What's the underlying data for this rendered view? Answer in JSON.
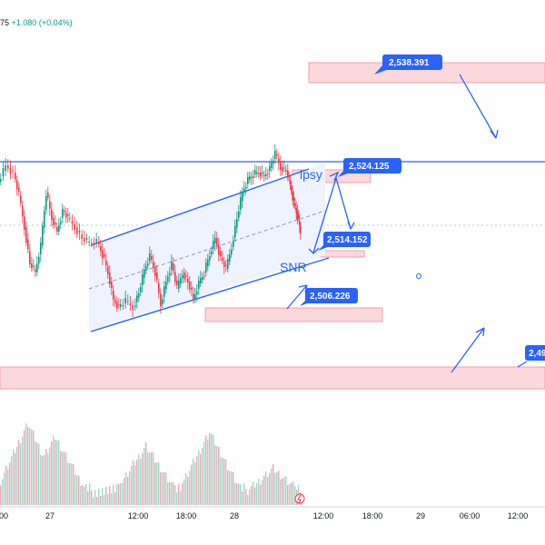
{
  "header": {
    "prefix": "75",
    "change": "+1.080 (+0.04%)"
  },
  "colors": {
    "up": "#089981",
    "down": "#f23645",
    "drawing": "#2962ff",
    "zone_fill": "#fbd8dc",
    "zone_border": "#f0a0a8",
    "channel_fill": "#eef3ff",
    "label_bg": "#2962ff",
    "axis_text": "#131722"
  },
  "time_axis": {
    "ticks": [
      "00",
      "27",
      "12:00",
      "18:00",
      "28",
      "12:00",
      "18:00",
      "29",
      "06:00",
      "12:00"
    ]
  },
  "price_labels": [
    {
      "name": "label-2538",
      "text": "2,538.391"
    },
    {
      "name": "label-2524",
      "text": "2,524.125"
    },
    {
      "name": "label-2514",
      "text": "2,514.152"
    },
    {
      "name": "label-2506",
      "text": "2,506.226"
    },
    {
      "name": "label-249x",
      "text": "2,49"
    }
  ],
  "annotations": {
    "lpsy": "lpsy",
    "snr": "SNR"
  },
  "icons": {
    "lightning": "lightning-icon",
    "circle": "circle-marker-icon"
  }
}
